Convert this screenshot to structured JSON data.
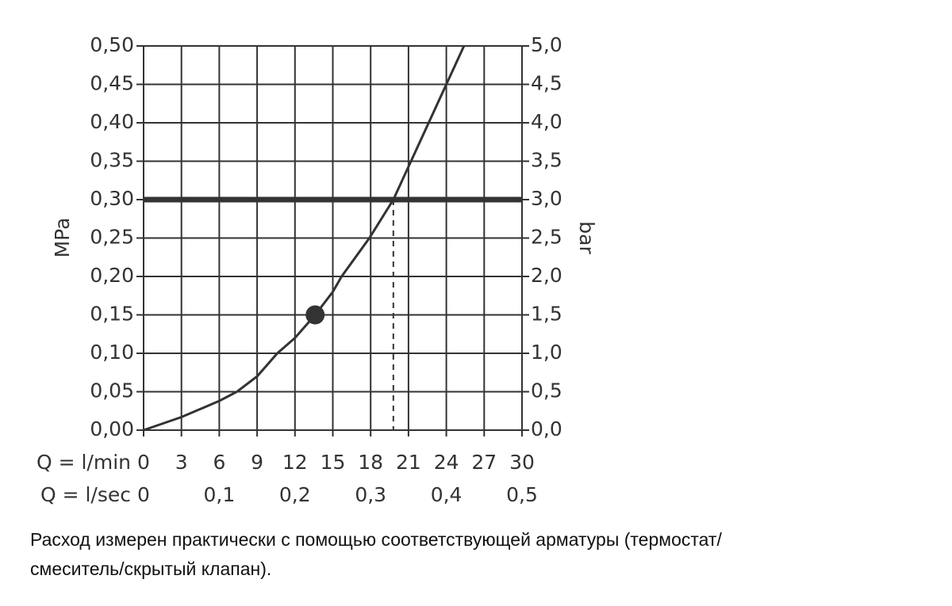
{
  "chart_data": {
    "type": "line",
    "x": [
      0,
      3,
      6,
      7.4,
      9,
      10.6,
      12,
      13.6,
      15,
      15.7,
      17.9,
      19.8,
      21.2,
      22.6,
      24,
      25.4
    ],
    "values": [
      0,
      0.017,
      0.038,
      0.05,
      0.07,
      0.1,
      0.12,
      0.15,
      0.18,
      0.2,
      0.25,
      0.3,
      0.35,
      0.4,
      0.45,
      0.5
    ],
    "color": "#333333",
    "xlim": [
      0,
      30
    ],
    "xticks": [
      0,
      3,
      6,
      9,
      12,
      15,
      18,
      21,
      24,
      27,
      30
    ],
    "x_label": "Q = l/min",
    "x2lim": [
      0,
      0.5
    ],
    "x2ticks": [
      0,
      {
        "value": 0.1,
        "label": "0,1"
      },
      {
        "value": 0.2,
        "label": "0,2"
      },
      {
        "value": 0.3,
        "label": "0,3"
      },
      {
        "value": 0.4,
        "label": "0,4"
      },
      {
        "value": 0.5,
        "label": "0,5"
      }
    ],
    "x2_label": "Q = l/sec",
    "ylim": [
      0,
      0.5
    ],
    "yticks": [
      {
        "value": 0,
        "label": "0,00"
      },
      {
        "value": 0.05,
        "label": "0,05"
      },
      {
        "value": 0.1,
        "label": "0,10"
      },
      {
        "value": 0.15,
        "label": "0,15"
      },
      {
        "value": 0.2,
        "label": "0,20"
      },
      {
        "value": 0.25,
        "label": "0,25"
      },
      {
        "value": 0.3,
        "label": "0,30"
      },
      {
        "value": 0.35,
        "label": "0,35"
      },
      {
        "value": 0.4,
        "label": "0,40"
      },
      {
        "value": 0.45,
        "label": "0,45"
      },
      {
        "value": 0.5,
        "label": "0,50"
      }
    ],
    "y_label": "MPa",
    "y2lim": [
      0,
      5
    ],
    "y2ticks": [
      {
        "value": 0,
        "label": "0,0"
      },
      {
        "value": 0.5,
        "label": "0,5"
      },
      {
        "value": 1,
        "label": "1,0"
      },
      {
        "value": 1.5,
        "label": "1,5"
      },
      {
        "value": 2,
        "label": "2,0"
      },
      {
        "value": 2.5,
        "label": "2,5"
      },
      {
        "value": 3,
        "label": "3,0"
      },
      {
        "value": 3.5,
        "label": "3,5"
      },
      {
        "value": 4,
        "label": "4,0"
      },
      {
        "value": 4.5,
        "label": "4,5"
      },
      {
        "value": 5,
        "label": "5,0"
      }
    ],
    "y2_label": "bar",
    "grid": true,
    "reference_line": 0.3,
    "operating_point": {
      "x": 19.8,
      "y": 0.3
    },
    "marker": {
      "x": 13.6,
      "y": 0.15
    }
  },
  "caption": [
    "Расход измерен практически с помощью соответствующей арматуры (термостат/",
    "смеситель/скрытый клапан)."
  ]
}
